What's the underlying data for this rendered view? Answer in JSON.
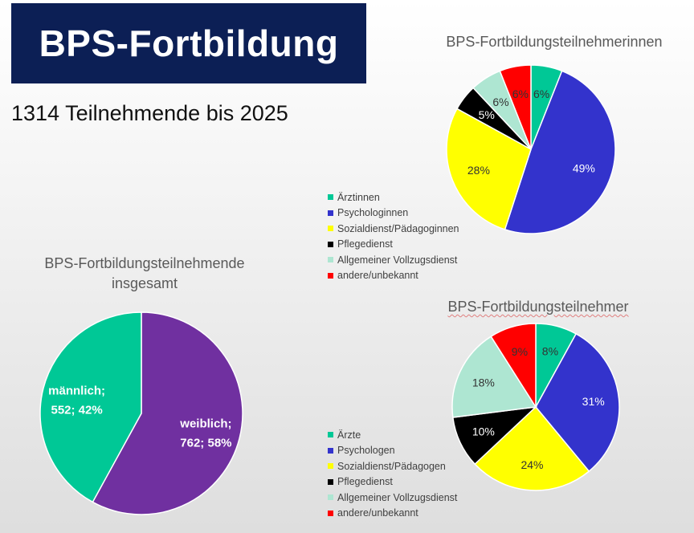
{
  "header": {
    "title": "BPS-Fortbildung",
    "subtitle": "1314 Teilnehmende bis 2025"
  },
  "chart_data": [
    {
      "type": "pie",
      "title": "BPS-Fortbildungsteilnehmerinnen",
      "legend_position": "left",
      "slices": [
        {
          "label": "Ärztinnen",
          "value": 6,
          "display": "6%",
          "color": "#00c896",
          "label_color": "#333333"
        },
        {
          "label": "Psychologinnen",
          "value": 49,
          "display": "49%",
          "color": "#3333cc",
          "label_color": "#ffffff"
        },
        {
          "label": "Sozialdienst/Pädagoginnen",
          "value": 28,
          "display": "28%",
          "color": "#ffff00",
          "label_color": "#333333"
        },
        {
          "label": "Pflegedienst",
          "value": 5,
          "display": "5%",
          "color": "#000000",
          "label_color": "#ffffff"
        },
        {
          "label": "Allgemeiner Vollzugsdienst",
          "value": 6,
          "display": "6%",
          "color": "#aee6d2",
          "label_color": "#333333"
        },
        {
          "label": "andere/unbekannt",
          "value": 6,
          "display": "6%",
          "color": "#ff0000",
          "label_color": "#333333"
        }
      ]
    },
    {
      "type": "pie",
      "title_lines": [
        "BPS-Fortbildungsteilnehmende",
        "insgesamt"
      ],
      "slices": [
        {
          "label": "weiblich",
          "value": 762,
          "percent": 58,
          "display_lines": [
            "weiblich;",
            "762; 58%"
          ],
          "color": "#7030a0",
          "label_color": "#ffffff"
        },
        {
          "label": "männlich",
          "value": 552,
          "percent": 42,
          "display_lines": [
            "männlich;",
            "552; 42%"
          ],
          "color": "#00c896",
          "label_color": "#ffffff"
        }
      ]
    },
    {
      "type": "pie",
      "title": "BPS-Fortbildungsteilnehmer",
      "legend_position": "left",
      "slices": [
        {
          "label": "Ärzte",
          "value": 8,
          "display": "8%",
          "color": "#00c896",
          "label_color": "#333333"
        },
        {
          "label": "Psychologen",
          "value": 31,
          "display": "31%",
          "color": "#3333cc",
          "label_color": "#ffffff"
        },
        {
          "label": "Sozialdienst/Pädagogen",
          "value": 24,
          "display": "24%",
          "color": "#ffff00",
          "label_color": "#333333"
        },
        {
          "label": "Pflegedienst",
          "value": 10,
          "display": "10%",
          "color": "#000000",
          "label_color": "#ffffff"
        },
        {
          "label": "Allgemeiner Vollzugsdienst",
          "value": 18,
          "display": "18%",
          "color": "#aee6d2",
          "label_color": "#333333"
        },
        {
          "label": "andere/unbekannt",
          "value": 9,
          "display": "9%",
          "color": "#ff0000",
          "label_color": "#333333"
        }
      ]
    }
  ]
}
